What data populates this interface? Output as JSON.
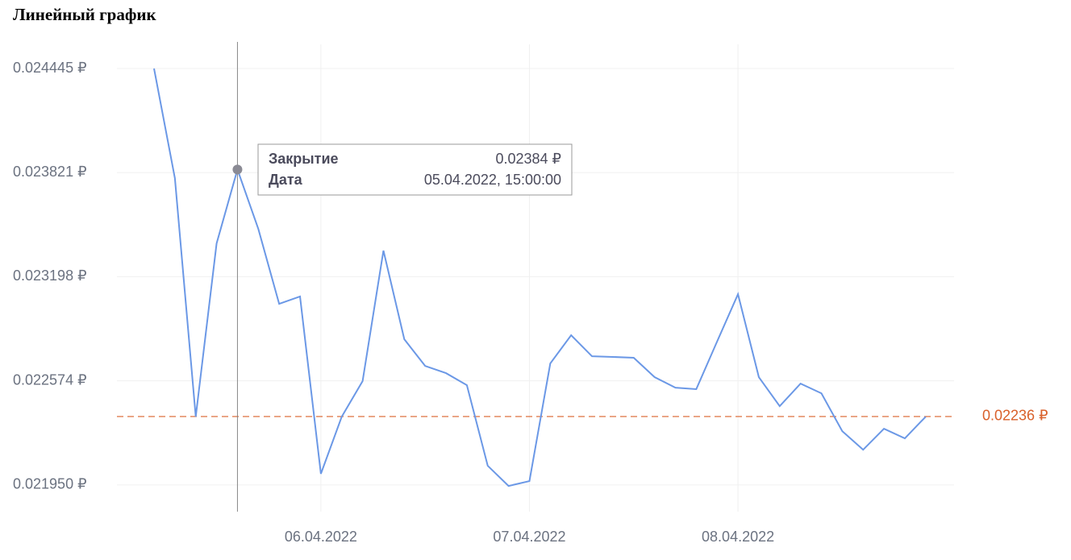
{
  "chart_data": {
    "type": "line",
    "title": "Линейный график",
    "categories": [
      null,
      null,
      null,
      null,
      null,
      null,
      null,
      null,
      "06.04.2022",
      null,
      null,
      null,
      null,
      null,
      null,
      null,
      null,
      null,
      "07.04.2022",
      null,
      null,
      null,
      null,
      null,
      null,
      null,
      null,
      null,
      "08.04.2022",
      null,
      null,
      null,
      null,
      null,
      null,
      null,
      null,
      null
    ],
    "series": [
      {
        "name": "Закрытие",
        "color": "#6b98e6",
        "values": [
          0.024445,
          0.023788,
          0.022359,
          0.023397,
          0.02384,
          0.023484,
          0.023035,
          0.023079,
          0.022017,
          0.022359,
          0.022572,
          0.023354,
          0.022823,
          0.022663,
          0.02262,
          0.022548,
          0.022065,
          0.021944,
          0.021973,
          0.022678,
          0.022847,
          0.022721,
          0.022717,
          0.022712,
          0.022596,
          0.022533,
          0.022524,
          0.02281,
          0.023093,
          0.022596,
          0.022422,
          0.022557,
          0.022499,
          0.022272,
          0.022161,
          0.022287,
          0.022229,
          0.022359
        ]
      }
    ],
    "ylim": [
      0.02179,
      0.02459
    ],
    "yticks": [
      {
        "value": 0.02195,
        "label": "0.021950 ₽"
      },
      {
        "value": 0.022574,
        "label": "0.022574 ₽"
      },
      {
        "value": 0.023198,
        "label": "0.023198 ₽"
      },
      {
        "value": 0.023821,
        "label": "0.023821 ₽"
      },
      {
        "value": 0.024445,
        "label": "0.024445 ₽"
      }
    ],
    "grid": true,
    "reference_line": {
      "value": 0.02236,
      "label": "0.02236 ₽",
      "color": "#d9602a"
    },
    "tooltip": {
      "point": 4,
      "rows": [
        {
          "label": "Закрытие",
          "value": "0.02384 ₽"
        },
        {
          "label": "Дата",
          "value": "05.04.2022, 15:00:00"
        }
      ]
    }
  }
}
